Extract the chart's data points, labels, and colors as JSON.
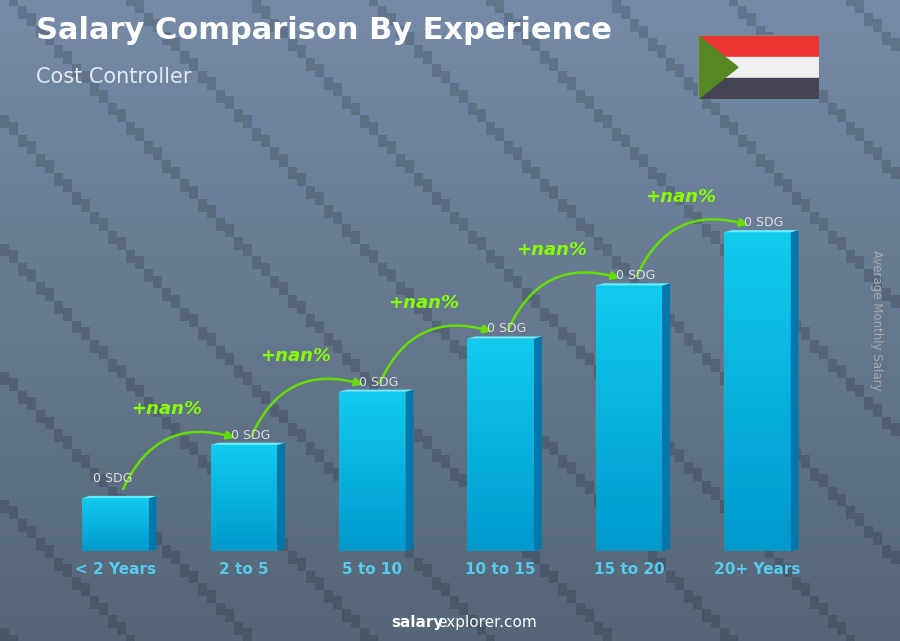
{
  "title": "Salary Comparison By Experience",
  "subtitle": "Cost Controller",
  "ylabel": "Average Monthly Salary",
  "footer_bold": "salary",
  "footer_normal": "explorer.com",
  "categories": [
    "< 2 Years",
    "2 to 5",
    "5 to 10",
    "10 to 15",
    "15 to 20",
    "20+ Years"
  ],
  "values": [
    1.0,
    2.0,
    3.0,
    4.0,
    5.0,
    6.0
  ],
  "bar_label": "0 SDG",
  "pct_label": "+nan%",
  "bar_color_main": "#00bbdd",
  "bar_color_light": "#33ddff",
  "bar_color_dark": "#0077aa",
  "bar_color_top": "#66eeff",
  "bg_top": "#7a8fa0",
  "bg_bottom": "#3a4a5a",
  "title_color": "#ffffff",
  "subtitle_color": "#e0e8f0",
  "xlabel_color": "#55ccee",
  "pct_color": "#88ff00",
  "sdg_color": "#dddddd",
  "footer_color": "#ffffff",
  "arrow_color": "#66dd00",
  "ylabel_color": "#aaaaaa",
  "flag_red": "#ee3333",
  "flag_white": "#f0f0f0",
  "flag_black": "#444455",
  "flag_green": "#558822"
}
